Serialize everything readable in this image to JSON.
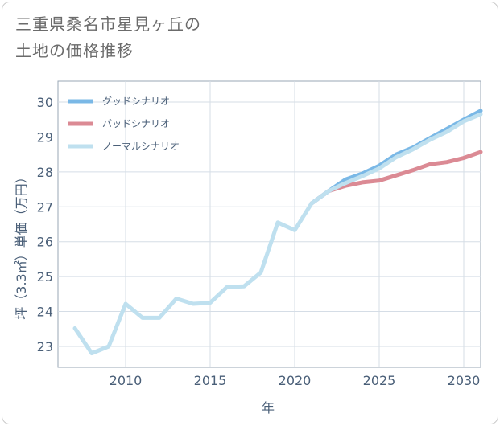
{
  "title_lines": [
    "三重県桑名市星見ヶ丘の",
    "土地の価格推移"
  ],
  "chart_data": {
    "type": "line",
    "title": "三重県桑名市星見ヶ丘の土地の価格推移",
    "xlabel": "年",
    "ylabel": "坪（3.3㎡）単価（万円）",
    "xlim": [
      2006,
      2031
    ],
    "ylim": [
      22.4,
      30.6
    ],
    "xticks": [
      2010,
      2015,
      2020,
      2025,
      2030
    ],
    "yticks": [
      23,
      24,
      25,
      26,
      27,
      28,
      29,
      30
    ],
    "grid": true,
    "legend_position": "top-left",
    "series": [
      {
        "name": "グッドシナリオ",
        "color": "#7ab8e6",
        "x": [
          2021,
          2022,
          2023,
          2024,
          2025,
          2026,
          2027,
          2028,
          2029,
          2030,
          2031
        ],
        "values": [
          27.1,
          27.45,
          27.78,
          27.95,
          28.18,
          28.5,
          28.7,
          28.97,
          29.23,
          29.5,
          29.75
        ]
      },
      {
        "name": "バッドシナリオ",
        "color": "#db8a94",
        "x": [
          2021,
          2022,
          2023,
          2024,
          2025,
          2026,
          2027,
          2028,
          2029,
          2030,
          2031
        ],
        "values": [
          27.1,
          27.45,
          27.6,
          27.7,
          27.75,
          27.9,
          28.05,
          28.22,
          28.28,
          28.4,
          28.57
        ]
      },
      {
        "name": "ノーマルシナリオ",
        "color": "#bfe0ef",
        "x": [
          2007,
          2008,
          2009,
          2010,
          2011,
          2012,
          2013,
          2014,
          2015,
          2016,
          2017,
          2018,
          2019,
          2020,
          2021,
          2022,
          2023,
          2024,
          2025,
          2026,
          2027,
          2028,
          2029,
          2030,
          2031
        ],
        "values": [
          23.52,
          22.8,
          23.0,
          24.22,
          23.82,
          23.82,
          24.37,
          24.22,
          24.25,
          24.7,
          24.72,
          25.12,
          26.55,
          26.33,
          27.1,
          27.45,
          27.68,
          27.88,
          28.1,
          28.42,
          28.65,
          28.92,
          29.15,
          29.45,
          29.65
        ]
      }
    ]
  }
}
